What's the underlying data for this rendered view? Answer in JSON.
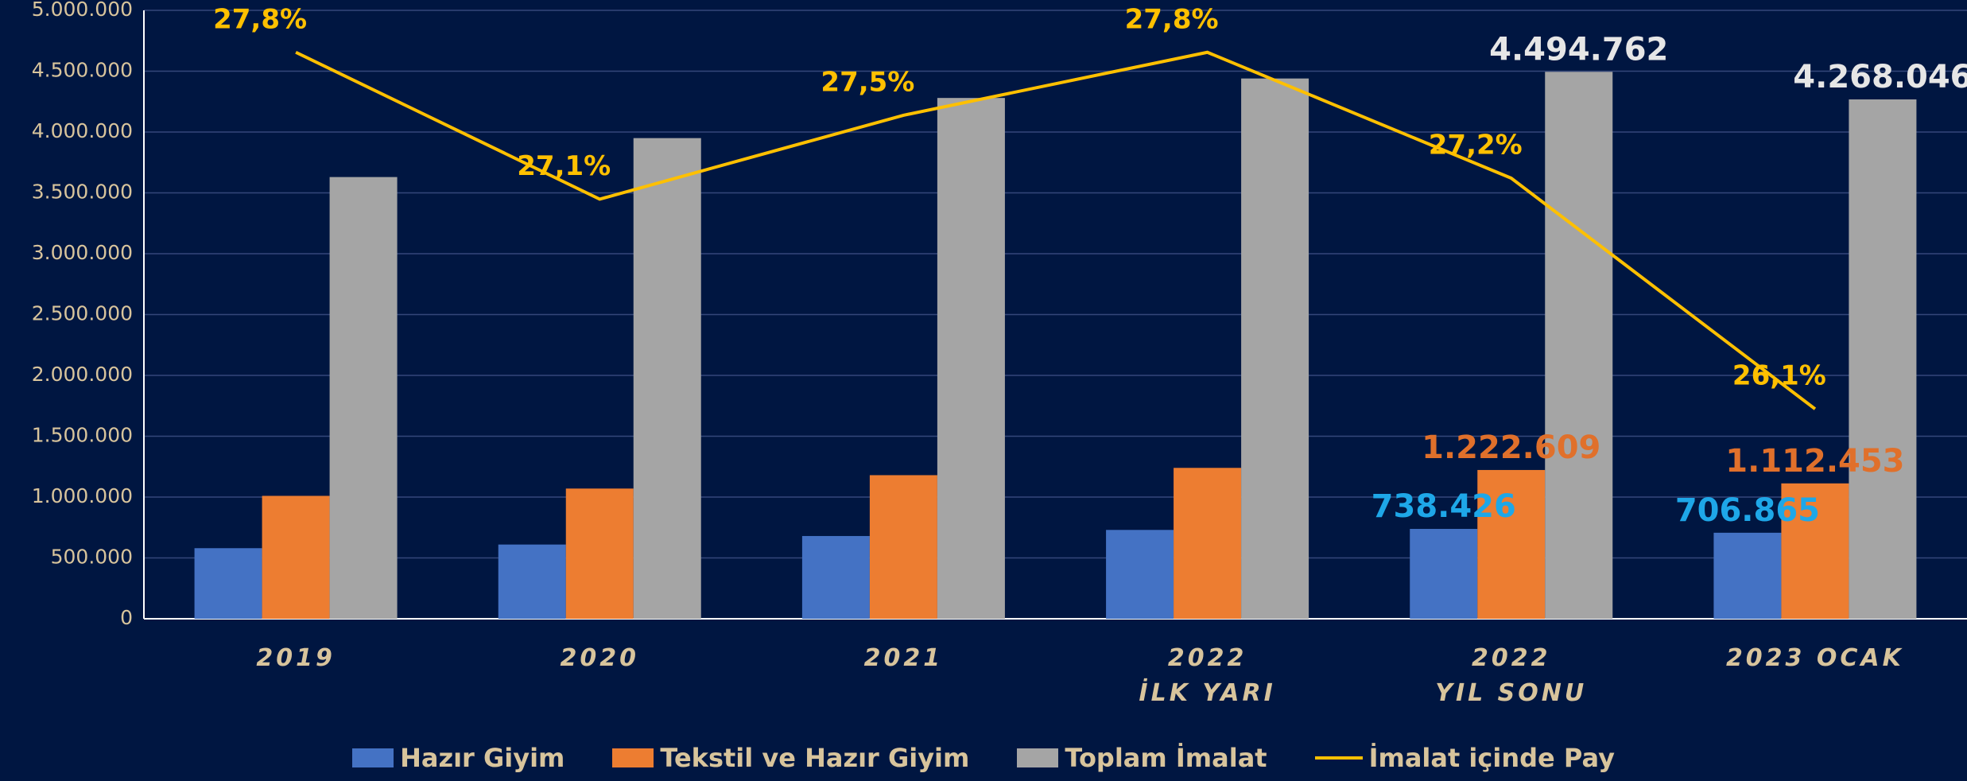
{
  "chart_data": {
    "type": "bar",
    "categories": [
      "2019",
      "2020",
      "2021",
      "2022\nİLK YARI",
      "2022\nYIL SONU",
      "2023 OCAK"
    ],
    "series": [
      {
        "name": "Hazır Giyim",
        "color": "#4472c4",
        "values": [
          580000,
          610000,
          680000,
          730000,
          738426,
          706865
        ],
        "value_labels": [
          null,
          null,
          null,
          null,
          "738.426",
          "706.865"
        ],
        "label_color": "#1ea7e8"
      },
      {
        "name": "Tekstil ve Hazır Giyim",
        "color": "#ed7d31",
        "values": [
          1010000,
          1070000,
          1180000,
          1240000,
          1222609,
          1112453
        ],
        "value_labels": [
          null,
          null,
          null,
          null,
          "1.222.609",
          "1.112.453"
        ],
        "label_color": "#e0702b"
      },
      {
        "name": "Toplam İmalat",
        "color": "#a5a5a5",
        "values": [
          3630000,
          3950000,
          4280000,
          4440000,
          4494762,
          4268046
        ],
        "value_labels": [
          null,
          null,
          null,
          null,
          "4.494.762",
          "4.268.046"
        ],
        "label_color": "#e6e6e6"
      },
      {
        "name": "İmalat içinde Pay",
        "type": "line",
        "axis": "y2",
        "color": "#ffc000",
        "values": [
          27.8,
          27.1,
          27.5,
          27.8,
          27.2,
          26.1
        ],
        "value_labels": [
          "27,8%",
          "27,1%",
          "27,5%",
          "27,8%",
          "27,2%",
          "26,1%"
        ],
        "label_color": "#ffc000"
      }
    ],
    "ylim": [
      0,
      5000000
    ],
    "yticks": [
      0,
      {
        "value": 500000,
        "label": "500.000"
      },
      {
        "value": 1000000,
        "label": "1.000.000"
      },
      {
        "value": 1500000,
        "label": "1.500.000"
      },
      {
        "value": 2000000,
        "label": "2.000.000"
      },
      {
        "value": 2500000,
        "label": "2.500.000"
      },
      {
        "value": 3000000,
        "label": "3.000.000"
      },
      {
        "value": 3500000,
        "label": "3.500.000"
      },
      {
        "value": 4000000,
        "label": "4.000.000"
      },
      {
        "value": 4500000,
        "label": "4.500.000"
      },
      {
        "value": 5000000,
        "label": "5.000.000"
      }
    ],
    "y2lim": [
      25.1,
      28.0
    ],
    "grid": true,
    "legend": "bottom"
  }
}
